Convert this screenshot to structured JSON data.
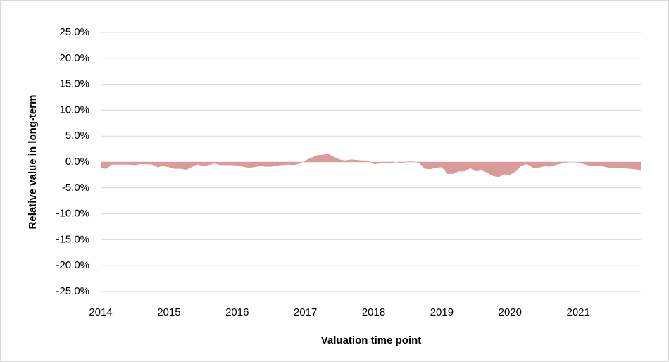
{
  "chart_data": {
    "type": "area",
    "x_label": "Valuation time point",
    "y_label": "Relative value in long-term",
    "categories": [
      "2014",
      null,
      null,
      null,
      null,
      null,
      null,
      null,
      null,
      null,
      null,
      null,
      "2015",
      null,
      null,
      null,
      null,
      null,
      null,
      null,
      null,
      null,
      null,
      null,
      "2016",
      null,
      null,
      null,
      null,
      null,
      null,
      null,
      null,
      null,
      null,
      null,
      "2017",
      null,
      null,
      null,
      null,
      null,
      null,
      null,
      null,
      null,
      null,
      null,
      "2018",
      null,
      null,
      null,
      null,
      null,
      null,
      null,
      null,
      null,
      null,
      null,
      "2019",
      null,
      null,
      null,
      null,
      null,
      null,
      null,
      null,
      null,
      null,
      null,
      "2020",
      null,
      null,
      null,
      null,
      null,
      null,
      null,
      null,
      null,
      null,
      null,
      "2021",
      null,
      null,
      null,
      null,
      null,
      null,
      null,
      null,
      null,
      null,
      null
    ],
    "values": [
      -1.2,
      -1.3,
      -0.5,
      -0.5,
      -0.5,
      -0.5,
      -0.6,
      -0.4,
      -0.4,
      -0.5,
      -1.0,
      -0.8,
      -1.0,
      -1.3,
      -1.3,
      -1.5,
      -1.0,
      -0.5,
      -0.8,
      -0.6,
      -0.3,
      -0.6,
      -0.6,
      -0.6,
      -0.7,
      -0.9,
      -1.1,
      -1.0,
      -0.8,
      -0.9,
      -0.9,
      -0.7,
      -0.6,
      -0.5,
      -0.6,
      -0.3,
      0.3,
      0.8,
      1.3,
      1.4,
      1.6,
      1.0,
      0.5,
      0.3,
      0.5,
      0.4,
      0.3,
      0.3,
      -0.4,
      -0.3,
      -0.2,
      -0.3,
      0.0,
      -0.3,
      0.1,
      0.1,
      -0.2,
      -1.3,
      -1.4,
      -1.1,
      -1.0,
      -2.3,
      -2.3,
      -1.8,
      -1.8,
      -1.2,
      -1.8,
      -1.6,
      -2.1,
      -2.7,
      -2.9,
      -2.4,
      -2.5,
      -1.8,
      -0.7,
      -0.4,
      -1.1,
      -1.1,
      -0.8,
      -0.9,
      -0.6,
      -0.3,
      -0.1,
      0.0,
      -0.1,
      -0.4,
      -0.7,
      -0.7,
      -0.8,
      -1.0,
      -1.2,
      -1.1,
      -1.2,
      -1.3,
      -1.4,
      -1.7
    ],
    "color": "#dc9b9b",
    "ylim": [
      -25,
      25
    ],
    "yticks": [
      {
        "value": 25,
        "label": "25.0%"
      },
      {
        "value": 20,
        "label": "20.0%"
      },
      {
        "value": 15,
        "label": "15.0%"
      },
      {
        "value": 10,
        "label": "10.0%"
      },
      {
        "value": 5,
        "label": "5.0%"
      },
      {
        "value": 0,
        "label": "0.0%"
      },
      {
        "value": -5,
        "label": "-5.0%"
      },
      {
        "value": -10,
        "label": "-10.0%"
      },
      {
        "value": -15,
        "label": "-15.0%"
      },
      {
        "value": -20,
        "label": "-20.0%"
      },
      {
        "value": -25,
        "label": "-25.0%"
      }
    ],
    "grid": true
  }
}
